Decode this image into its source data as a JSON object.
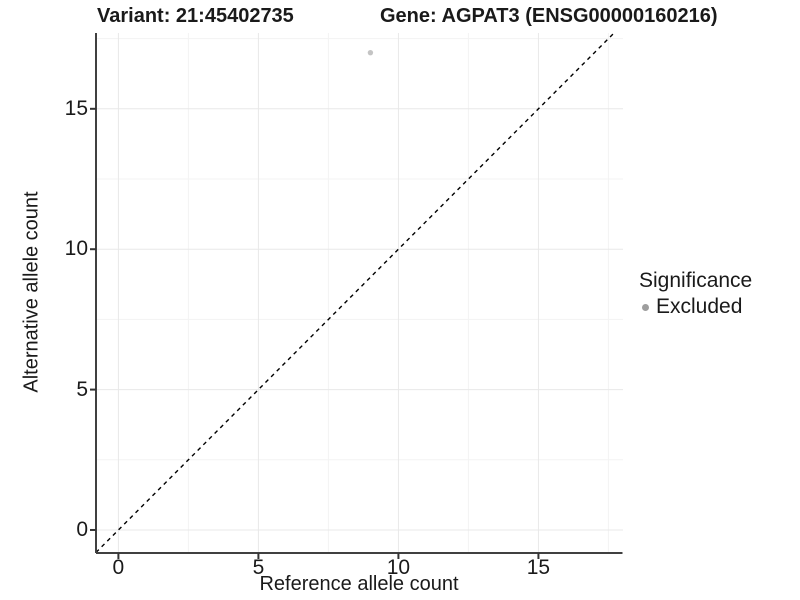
{
  "chart_data": {
    "type": "scatter",
    "titles": {
      "variant": "Variant: 21:45402735",
      "gene": "Gene: AGPAT3 (ENSG00000160216)"
    },
    "xlabel": "Reference allele count",
    "ylabel": "Alternative allele count",
    "x_ticks": [
      0,
      5,
      10,
      15
    ],
    "y_ticks": [
      0,
      5,
      10,
      15
    ],
    "x_minor_ticks": [
      2.5,
      7.5,
      12.5,
      17.5
    ],
    "y_minor_ticks": [
      2.5,
      7.5,
      12.5,
      17.5
    ],
    "xlim": [
      -0.8,
      18.02
    ],
    "ylim": [
      -0.82,
      17.7
    ],
    "grid": true,
    "reference_line": {
      "kind": "identity",
      "slope": 1,
      "intercept": 0,
      "style": "dashed",
      "color": "#000000"
    },
    "series": [
      {
        "name": "Excluded",
        "color": "#c4c4c4",
        "points": [
          {
            "x": 9,
            "y": 17
          }
        ]
      }
    ],
    "legend": {
      "title": "Significance",
      "position": "right",
      "items": [
        {
          "label": "Excluded",
          "color": "#9e9e9e"
        }
      ]
    },
    "colors": {
      "background": "#ffffff",
      "grid_major": "#e8e8e8",
      "grid_minor": "#f3f3f3",
      "axis_line": "#404040",
      "tick_mark": "#333333",
      "text": "#1a1a1a"
    }
  }
}
